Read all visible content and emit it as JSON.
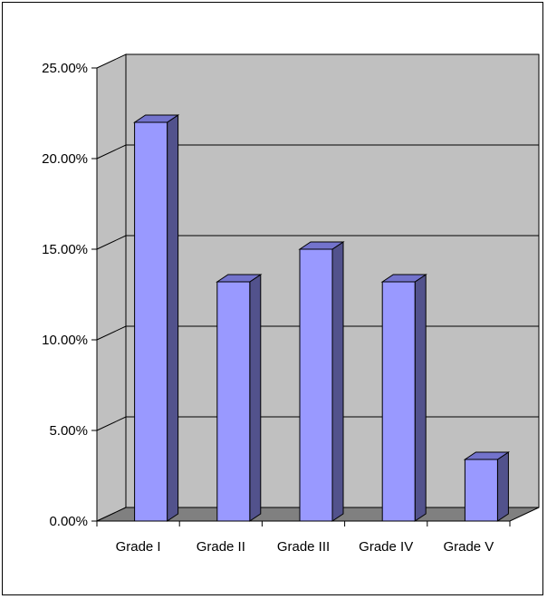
{
  "chart_data": {
    "type": "bar",
    "title": "",
    "xlabel": "",
    "ylabel": "",
    "categories": [
      "Grade I",
      "Grade II",
      "Grade III",
      "Grade IV",
      "Grade V"
    ],
    "values": [
      22.0,
      13.2,
      15.0,
      13.2,
      3.4
    ],
    "ylim": [
      0,
      25
    ],
    "yticks": [
      0,
      5,
      10,
      15,
      20,
      25
    ],
    "ytick_labels": [
      "0.00%",
      "5.00%",
      "10.00%",
      "15.00%",
      "20.00%",
      "25.00%"
    ],
    "grid": true,
    "legend": "none",
    "style": "3d-column",
    "colors": {
      "bar_front": "#9999ff",
      "bar_side": "#52528c",
      "bar_top": "#7373cc",
      "wall": "#c0c0c0",
      "floor": "#808080",
      "gridline": "#000000"
    }
  }
}
